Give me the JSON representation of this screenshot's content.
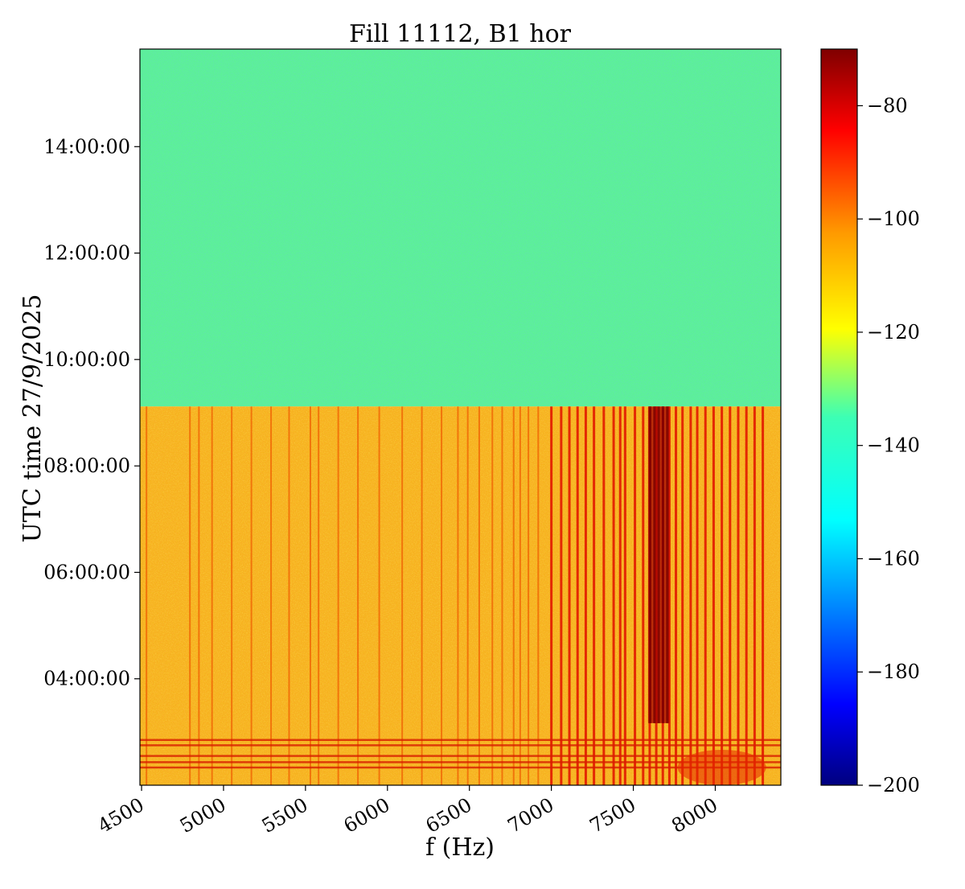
{
  "chart_data": {
    "type": "heatmap",
    "title": "Fill 11112, B1 hor",
    "xlabel": "f (Hz)",
    "ylabel": "UTC time 27/9/2025",
    "x_ticks": [
      4500,
      5000,
      5500,
      6000,
      6500,
      7000,
      7500,
      8000
    ],
    "x_tick_labels": [
      "4500",
      "5000",
      "5500",
      "6000",
      "6500",
      "7000",
      "7500",
      "8000"
    ],
    "xlim": [
      4490,
      8400
    ],
    "y_ticks": [
      "04:00:00",
      "06:00:00",
      "08:00:00",
      "10:00:00",
      "12:00:00",
      "14:00:00"
    ],
    "ylim": [
      "02:00:00",
      "15:50:00"
    ],
    "colormap": "jet",
    "colorbar": {
      "ticks": [
        -80,
        -100,
        -120,
        -140,
        -160,
        -180,
        -200
      ],
      "tick_labels": [
        "−80",
        "−100",
        "−120",
        "−140",
        "−160",
        "−180",
        "−200"
      ],
      "range": [
        -200,
        -70
      ]
    },
    "regions": [
      {
        "t_start": "09:07:00",
        "t_end": "15:50:00",
        "level_db": -134,
        "description_color": "#5cf296"
      },
      {
        "t_start": "02:00:00",
        "t_end": "09:07:00",
        "level_db": -108,
        "description_color": "#f6b21c"
      }
    ],
    "harmonic_lines_hz": [
      4530,
      4795,
      4850,
      4930,
      5050,
      5170,
      5290,
      5400,
      5530,
      5580,
      5700,
      5820,
      5950,
      6090,
      6210,
      6330,
      6430,
      6490,
      6560,
      6640,
      6700,
      6770,
      6810,
      6860,
      6920,
      7000,
      7060,
      7110,
      7160,
      7210,
      7260,
      7320,
      7380,
      7420,
      7450,
      7510,
      7560,
      7600,
      7640,
      7680,
      7720,
      7760,
      7800,
      7850,
      7890,
      7940,
      7990,
      8040,
      8090,
      8140,
      8190,
      8240,
      8290
    ],
    "intense_band_hz": [
      7590,
      7720
    ],
    "intense_band_time": [
      "03:10:00",
      "09:07:00"
    ]
  }
}
